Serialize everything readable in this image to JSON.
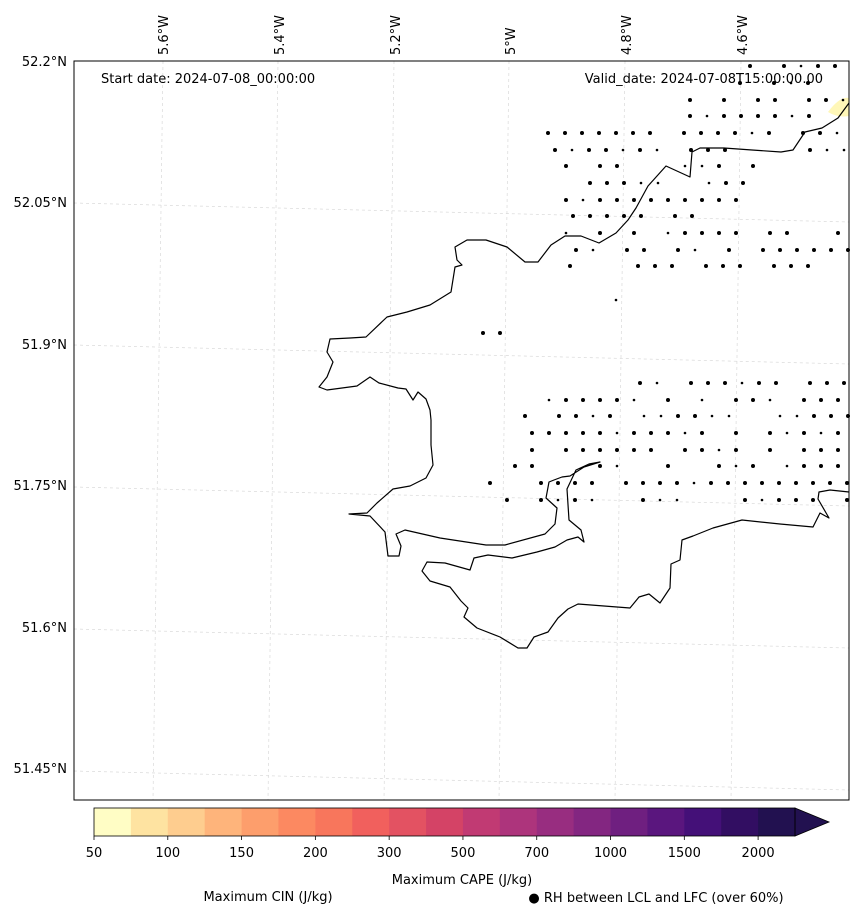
{
  "map": {
    "start_date": "Start date: 2024-07-08_00:00:00",
    "valid_date": "Valid_date: 2024-07-08T15:00:00.00",
    "lon_labels": [
      "5.6°W",
      "5.4°W",
      "5.2°W",
      "5°W",
      "4.8°W",
      "4.6°W"
    ],
    "lat_labels": [
      "52.2°N",
      "52.05°N",
      "51.9°N",
      "51.75°N",
      "51.6°N",
      "51.45°N"
    ],
    "coast_color": "#000000",
    "grid_color": "#d9d9d9",
    "dot_color": "#000000",
    "cape_patch_color": "#fff7b8"
  },
  "colorbar": {
    "tick_labels": [
      "50",
      "100",
      "150",
      "200",
      "300",
      "500",
      "700",
      "1000",
      "1500",
      "2000"
    ],
    "colors": [
      "#fffdc5",
      "#fee3a1",
      "#fecd8f",
      "#feb47b",
      "#fd9e6c",
      "#fc8961",
      "#f8765c",
      "#f1605d",
      "#e35262",
      "#d44366",
      "#c13a73",
      "#ad347c",
      "#982d80",
      "#832681",
      "#6f1f80",
      "#5a167e",
      "#441078",
      "#320e62",
      "#221150"
    ],
    "extend_color": "#221150",
    "label": "Maximum CAPE (J/kg)"
  },
  "legend": {
    "cin_label": "Maximum CIN (J/kg)",
    "cin_color": "#ff0000",
    "rh_label": "● RH between LCL and LFC (over 60%)"
  }
}
